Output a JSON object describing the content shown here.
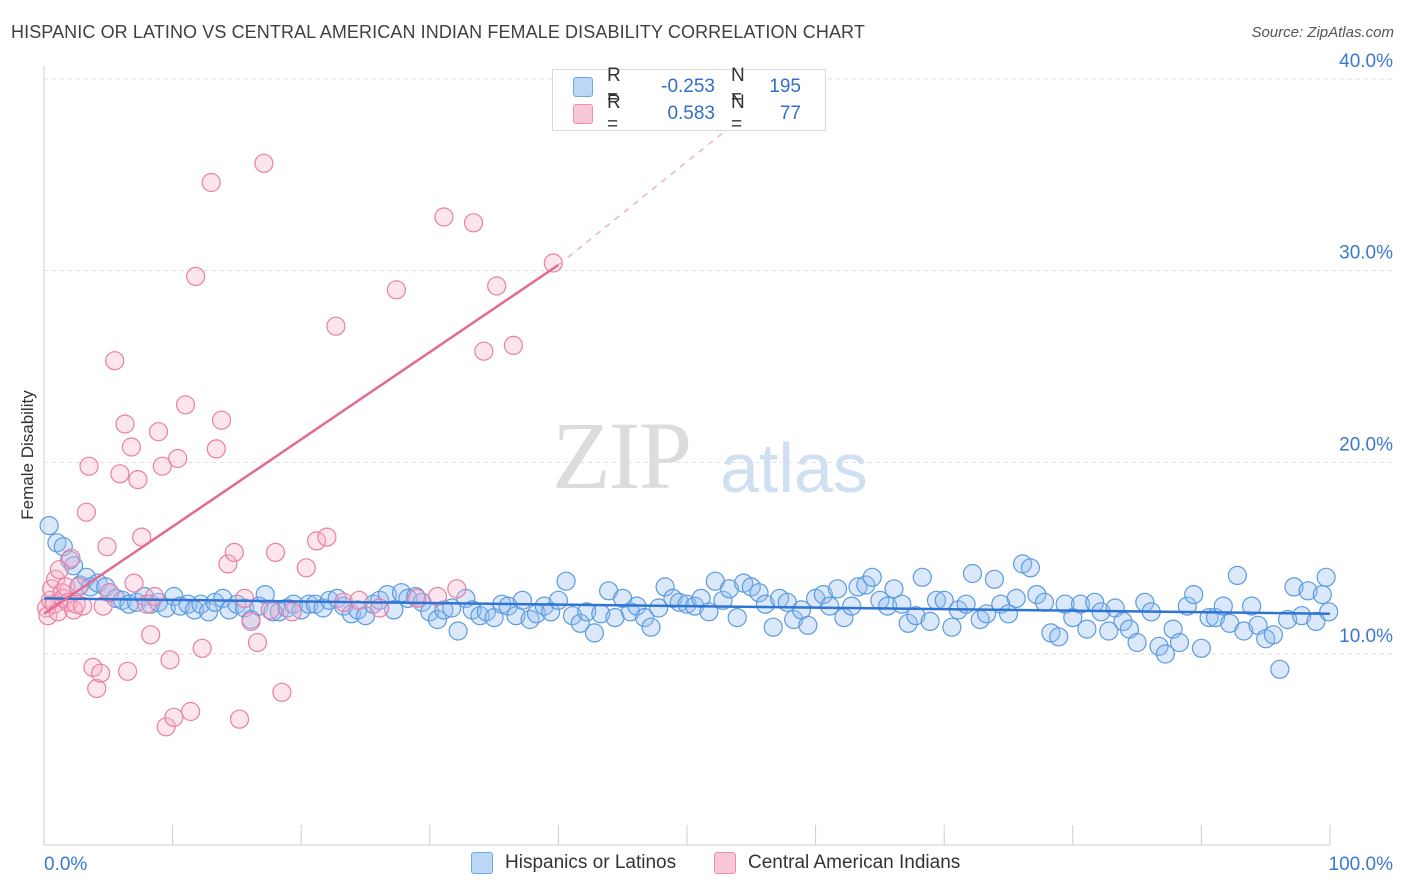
{
  "header": {
    "title": "HISPANIC OR LATINO VS CENTRAL AMERICAN INDIAN FEMALE DISABILITY CORRELATION CHART",
    "source": "Source: ZipAtlas.com"
  },
  "watermark": {
    "zip": "ZIP",
    "atlas": "atlas"
  },
  "legend": {
    "rows": [
      {
        "r_label": "R =",
        "r_value": "-0.253",
        "n_label": "N =",
        "n_value": "195",
        "color": "#6fa8e8",
        "fill": "#bcd6f5"
      },
      {
        "r_label": "R =",
        "r_value": "0.583",
        "n_label": "N =",
        "n_value": "77",
        "color": "#ec8fae",
        "fill": "#f8c7d7"
      }
    ]
  },
  "bottom_legend": {
    "items": [
      {
        "label": "Hispanics or Latinos",
        "color": "#6fa8e8",
        "fill": "#bcd6f5"
      },
      {
        "label": "Central American Indians",
        "color": "#ec8fae",
        "fill": "#f8c7d7"
      }
    ]
  },
  "chart_data": {
    "type": "scatter",
    "title": "HISPANIC OR LATINO VS CENTRAL AMERICAN INDIAN FEMALE DISABILITY CORRELATION CHART",
    "xlabel": "",
    "ylabel": "Female Disability",
    "xlim": [
      0,
      100
    ],
    "ylim": [
      0,
      42
    ],
    "x_tick_labels": [
      "0.0%",
      "100.0%"
    ],
    "y_ticks": [
      10,
      20,
      30,
      40
    ],
    "y_tick_labels": [
      "10.0%",
      "20.0%",
      "30.0%",
      "40.0%"
    ],
    "grid": true,
    "series": [
      {
        "name": "Hispanics or Latinos",
        "color": "#5b9be0",
        "trend": {
          "x": [
            0,
            100
          ],
          "y": [
            12.9,
            12.1
          ]
        },
        "points": [
          [
            0.4,
            16.7
          ],
          [
            1.0,
            15.8
          ],
          [
            1.5,
            15.6
          ],
          [
            2.0,
            14.9
          ],
          [
            2.3,
            14.6
          ],
          [
            2.8,
            13.6
          ],
          [
            3.3,
            14.0
          ],
          [
            3.6,
            13.5
          ],
          [
            4.2,
            13.7
          ],
          [
            4.8,
            13.5
          ],
          [
            5.1,
            13.2
          ],
          [
            5.6,
            12.9
          ],
          [
            6.1,
            12.8
          ],
          [
            6.6,
            12.6
          ],
          [
            7.2,
            12.7
          ],
          [
            7.8,
            13.0
          ],
          [
            8.3,
            12.6
          ],
          [
            8.9,
            12.7
          ],
          [
            9.5,
            12.4
          ],
          [
            10.1,
            13.0
          ],
          [
            10.6,
            12.5
          ],
          [
            11.2,
            12.6
          ],
          [
            11.7,
            12.3
          ],
          [
            12.2,
            12.6
          ],
          [
            12.8,
            12.2
          ],
          [
            13.3,
            12.7
          ],
          [
            13.9,
            12.9
          ],
          [
            14.4,
            12.3
          ],
          [
            15.0,
            12.6
          ],
          [
            15.6,
            12.4
          ],
          [
            16.1,
            11.8
          ],
          [
            16.7,
            12.5
          ],
          [
            17.2,
            13.1
          ],
          [
            17.8,
            12.2
          ],
          [
            18.3,
            12.2
          ],
          [
            18.9,
            12.4
          ],
          [
            19.4,
            12.6
          ],
          [
            20.0,
            12.3
          ],
          [
            20.6,
            12.6
          ],
          [
            21.1,
            12.6
          ],
          [
            21.7,
            12.4
          ],
          [
            22.2,
            12.8
          ],
          [
            22.8,
            12.9
          ],
          [
            23.3,
            12.5
          ],
          [
            23.9,
            12.1
          ],
          [
            24.4,
            12.3
          ],
          [
            25.0,
            12.0
          ],
          [
            25.6,
            12.6
          ],
          [
            26.1,
            12.8
          ],
          [
            26.7,
            13.1
          ],
          [
            27.2,
            12.3
          ],
          [
            27.8,
            13.2
          ],
          [
            28.3,
            12.9
          ],
          [
            28.9,
            13.0
          ],
          [
            29.4,
            12.7
          ],
          [
            30.0,
            12.2
          ],
          [
            30.6,
            11.8
          ],
          [
            31.1,
            12.3
          ],
          [
            31.7,
            12.4
          ],
          [
            32.2,
            11.2
          ],
          [
            32.8,
            12.9
          ],
          [
            33.3,
            12.3
          ],
          [
            33.9,
            12.0
          ],
          [
            34.4,
            12.2
          ],
          [
            35.0,
            11.9
          ],
          [
            35.6,
            12.6
          ],
          [
            36.1,
            12.5
          ],
          [
            36.7,
            12.0
          ],
          [
            37.2,
            12.8
          ],
          [
            37.8,
            11.8
          ],
          [
            38.3,
            12.1
          ],
          [
            38.9,
            12.5
          ],
          [
            39.4,
            12.2
          ],
          [
            40.0,
            12.8
          ],
          [
            40.6,
            13.8
          ],
          [
            41.1,
            12.0
          ],
          [
            41.7,
            11.6
          ],
          [
            42.2,
            12.2
          ],
          [
            42.8,
            11.1
          ],
          [
            43.3,
            12.1
          ],
          [
            43.9,
            13.3
          ],
          [
            44.4,
            11.9
          ],
          [
            45.0,
            12.9
          ],
          [
            45.6,
            12.2
          ],
          [
            46.1,
            12.5
          ],
          [
            46.7,
            11.9
          ],
          [
            47.2,
            11.4
          ],
          [
            47.8,
            12.4
          ],
          [
            48.3,
            13.5
          ],
          [
            48.9,
            12.9
          ],
          [
            49.4,
            12.7
          ],
          [
            50.0,
            12.6
          ],
          [
            50.6,
            12.5
          ],
          [
            51.1,
            12.9
          ],
          [
            51.7,
            12.2
          ],
          [
            52.2,
            13.8
          ],
          [
            52.8,
            12.8
          ],
          [
            53.3,
            13.4
          ],
          [
            53.9,
            11.9
          ],
          [
            54.4,
            13.7
          ],
          [
            55.0,
            13.5
          ],
          [
            55.6,
            13.2
          ],
          [
            56.1,
            12.6
          ],
          [
            56.7,
            11.4
          ],
          [
            57.2,
            12.9
          ],
          [
            57.8,
            12.7
          ],
          [
            58.3,
            11.8
          ],
          [
            58.9,
            12.3
          ],
          [
            59.4,
            11.5
          ],
          [
            60.0,
            12.9
          ],
          [
            60.6,
            13.1
          ],
          [
            61.1,
            12.5
          ],
          [
            61.7,
            13.4
          ],
          [
            62.2,
            11.9
          ],
          [
            62.8,
            12.5
          ],
          [
            63.3,
            13.5
          ],
          [
            63.9,
            13.6
          ],
          [
            64.4,
            14.0
          ],
          [
            65.0,
            12.8
          ],
          [
            65.6,
            12.5
          ],
          [
            66.1,
            13.4
          ],
          [
            66.7,
            12.6
          ],
          [
            67.2,
            11.6
          ],
          [
            67.8,
            12.0
          ],
          [
            68.3,
            14.0
          ],
          [
            68.9,
            11.7
          ],
          [
            69.4,
            12.8
          ],
          [
            70.0,
            12.8
          ],
          [
            70.6,
            11.4
          ],
          [
            71.1,
            12.3
          ],
          [
            71.7,
            12.6
          ],
          [
            72.2,
            14.2
          ],
          [
            72.8,
            11.8
          ],
          [
            73.3,
            12.1
          ],
          [
            73.9,
            13.9
          ],
          [
            74.4,
            12.6
          ],
          [
            75.0,
            12.1
          ],
          [
            75.6,
            12.9
          ],
          [
            76.1,
            14.7
          ],
          [
            76.7,
            14.5
          ],
          [
            77.2,
            13.1
          ],
          [
            77.8,
            12.7
          ],
          [
            78.3,
            11.1
          ],
          [
            78.9,
            10.9
          ],
          [
            79.4,
            12.6
          ],
          [
            80.0,
            11.9
          ],
          [
            80.6,
            12.6
          ],
          [
            81.1,
            11.3
          ],
          [
            81.7,
            12.7
          ],
          [
            82.2,
            12.2
          ],
          [
            82.8,
            11.2
          ],
          [
            83.3,
            12.4
          ],
          [
            83.9,
            11.7
          ],
          [
            84.4,
            11.3
          ],
          [
            85.0,
            10.6
          ],
          [
            85.6,
            12.7
          ],
          [
            86.1,
            12.2
          ],
          [
            86.7,
            10.4
          ],
          [
            87.2,
            10.0
          ],
          [
            87.8,
            11.3
          ],
          [
            88.3,
            10.6
          ],
          [
            88.9,
            12.5
          ],
          [
            89.4,
            13.1
          ],
          [
            90.0,
            10.3
          ],
          [
            90.6,
            11.9
          ],
          [
            91.1,
            11.9
          ],
          [
            91.7,
            12.5
          ],
          [
            92.2,
            11.6
          ],
          [
            92.8,
            14.1
          ],
          [
            93.3,
            11.2
          ],
          [
            93.9,
            12.5
          ],
          [
            94.4,
            11.5
          ],
          [
            95.0,
            10.8
          ],
          [
            95.6,
            11.0
          ],
          [
            96.1,
            9.2
          ],
          [
            96.7,
            11.8
          ],
          [
            97.2,
            13.5
          ],
          [
            97.8,
            12.0
          ],
          [
            98.3,
            13.3
          ],
          [
            98.9,
            11.7
          ],
          [
            99.4,
            13.1
          ],
          [
            99.7,
            14.0
          ],
          [
            99.9,
            12.2
          ]
        ]
      },
      {
        "name": "Central American Indians",
        "color": "#e97fa4",
        "trend": {
          "x": [
            0,
            40
          ],
          "y": [
            12.1,
            30.3
          ]
        },
        "trend_dashed": {
          "x": [
            40,
            58
          ],
          "y": [
            30.3,
            40.0
          ]
        },
        "points": [
          [
            0.2,
            12.4
          ],
          [
            0.3,
            12.0
          ],
          [
            0.5,
            12.8
          ],
          [
            0.6,
            13.4
          ],
          [
            0.8,
            12.6
          ],
          [
            0.9,
            13.9
          ],
          [
            1.1,
            12.2
          ],
          [
            1.2,
            14.4
          ],
          [
            1.4,
            13.2
          ],
          [
            1.5,
            12.9
          ],
          [
            1.7,
            13.5
          ],
          [
            1.9,
            12.7
          ],
          [
            2.1,
            15.0
          ],
          [
            2.3,
            12.3
          ],
          [
            2.5,
            12.6
          ],
          [
            2.7,
            13.5
          ],
          [
            3.0,
            12.5
          ],
          [
            3.3,
            17.4
          ],
          [
            3.5,
            19.8
          ],
          [
            3.8,
            9.3
          ],
          [
            4.1,
            8.2
          ],
          [
            4.4,
            9.0
          ],
          [
            4.6,
            12.5
          ],
          [
            4.9,
            15.6
          ],
          [
            5.1,
            13.2
          ],
          [
            5.5,
            25.3
          ],
          [
            5.9,
            19.4
          ],
          [
            6.3,
            22.0
          ],
          [
            6.5,
            9.1
          ],
          [
            6.8,
            20.8
          ],
          [
            7.0,
            13.7
          ],
          [
            7.3,
            19.1
          ],
          [
            7.6,
            16.1
          ],
          [
            8.0,
            12.6
          ],
          [
            8.3,
            11.0
          ],
          [
            8.6,
            13.0
          ],
          [
            8.9,
            21.6
          ],
          [
            9.2,
            19.8
          ],
          [
            9.5,
            6.2
          ],
          [
            9.8,
            9.7
          ],
          [
            10.1,
            6.7
          ],
          [
            10.4,
            20.2
          ],
          [
            11.0,
            23.0
          ],
          [
            11.4,
            7.0
          ],
          [
            11.8,
            29.7
          ],
          [
            12.3,
            10.3
          ],
          [
            13.0,
            34.6
          ],
          [
            13.4,
            20.7
          ],
          [
            13.8,
            22.2
          ],
          [
            14.3,
            14.7
          ],
          [
            14.8,
            15.3
          ],
          [
            15.2,
            6.6
          ],
          [
            15.6,
            12.9
          ],
          [
            16.1,
            11.7
          ],
          [
            16.6,
            10.6
          ],
          [
            17.1,
            35.6
          ],
          [
            17.6,
            12.3
          ],
          [
            18.0,
            15.3
          ],
          [
            18.5,
            8.0
          ],
          [
            19.3,
            12.2
          ],
          [
            20.4,
            14.5
          ],
          [
            21.2,
            15.9
          ],
          [
            22.0,
            16.1
          ],
          [
            22.7,
            27.1
          ],
          [
            23.3,
            12.7
          ],
          [
            24.5,
            12.8
          ],
          [
            26.1,
            12.4
          ],
          [
            27.4,
            29.0
          ],
          [
            29.0,
            12.9
          ],
          [
            30.6,
            13.0
          ],
          [
            31.1,
            32.8
          ],
          [
            32.1,
            13.4
          ],
          [
            33.4,
            32.5
          ],
          [
            34.2,
            25.8
          ],
          [
            35.2,
            29.2
          ],
          [
            36.5,
            26.1
          ],
          [
            39.6,
            30.4
          ]
        ]
      }
    ]
  }
}
